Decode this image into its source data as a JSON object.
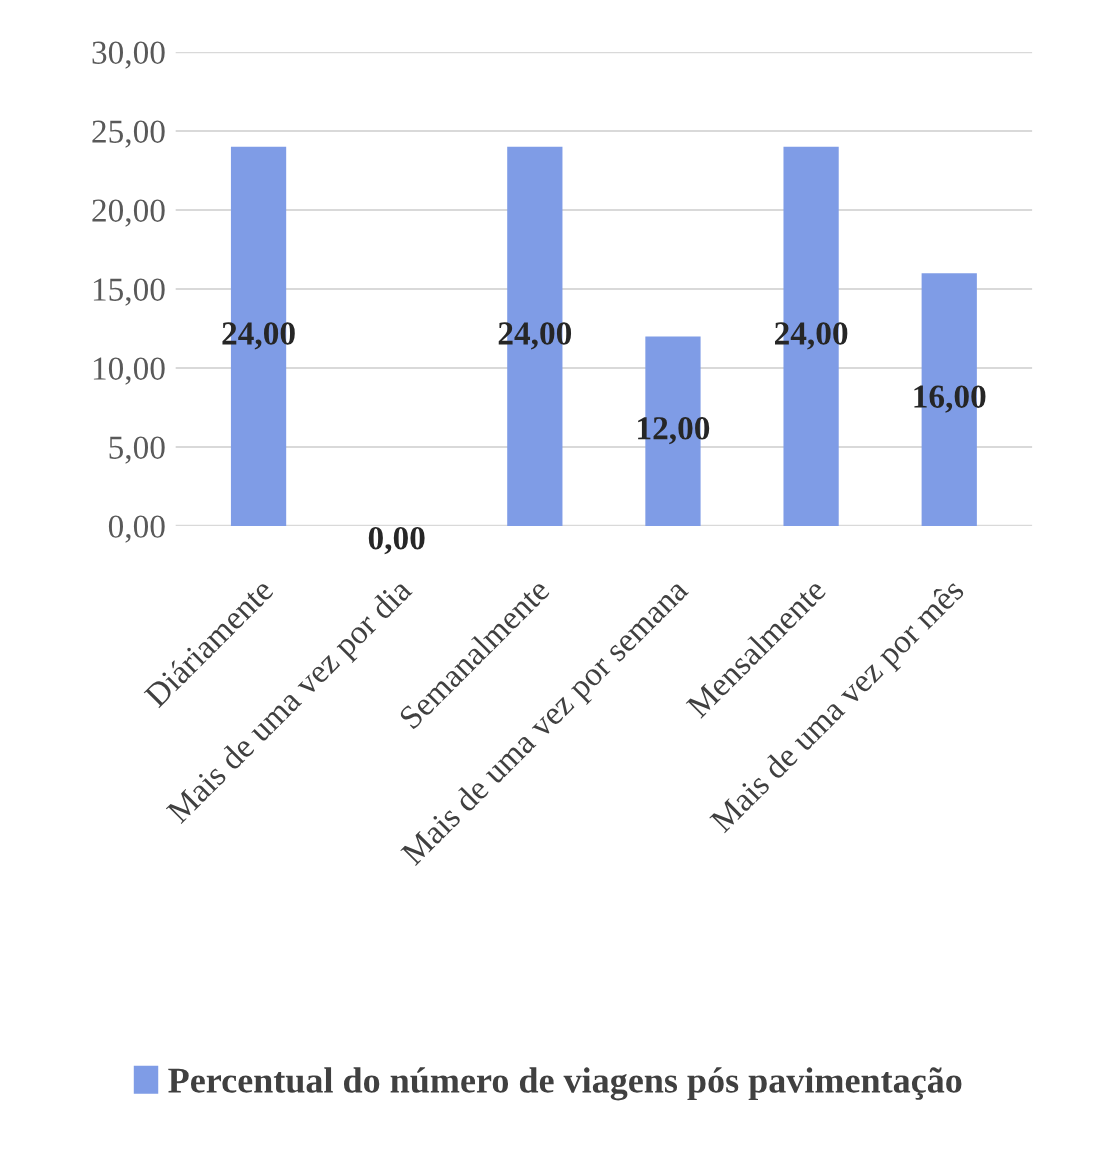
{
  "chart_data": {
    "type": "bar",
    "categories": [
      "Diáriamente",
      "Mais de uma vez por dia",
      "Semanalmente",
      "Mais de uma vez por semana",
      "Mensalmente",
      "Mais de uma vez por mês"
    ],
    "series": [
      {
        "name": "Percentual do número de viagens pós pavimentação",
        "color": "#7f9ce6",
        "values": [
          24,
          0,
          24,
          12,
          24,
          16
        ],
        "value_labels": [
          "24,00",
          "0,00",
          "24,00",
          "12,00",
          "24,00",
          "16,00"
        ]
      }
    ],
    "ylim": [
      0,
      30
    ],
    "yticks": [
      {
        "value": 0,
        "label": "0,00"
      },
      {
        "value": 5,
        "label": "5,00"
      },
      {
        "value": 10,
        "label": "10,00"
      },
      {
        "value": 15,
        "label": "15,00"
      },
      {
        "value": 20,
        "label": "20,00"
      },
      {
        "value": 25,
        "label": "25,00"
      },
      {
        "value": 30,
        "label": "30,00"
      }
    ],
    "grid": "y",
    "legend": "bottom"
  }
}
